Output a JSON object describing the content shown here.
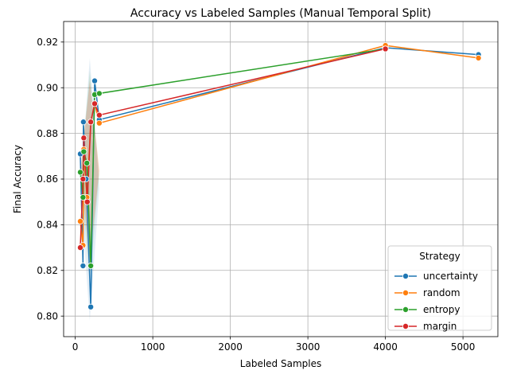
{
  "chart_data": {
    "type": "line",
    "title": "Accuracy vs Labeled Samples (Manual Temporal Split)",
    "xlabel": "Labeled Samples",
    "ylabel": "Final Accuracy",
    "xlim": [
      -150,
      5450
    ],
    "ylim": [
      0.791,
      0.929
    ],
    "xticks": [
      0,
      1000,
      2000,
      3000,
      4000,
      5000
    ],
    "xtick_labels": [
      "0",
      "1000",
      "2000",
      "3000",
      "4000",
      "5000"
    ],
    "yticks": [
      0.8,
      0.82,
      0.84,
      0.86,
      0.88,
      0.9,
      0.92
    ],
    "ytick_labels": [
      "0.80",
      "0.82",
      "0.84",
      "0.86",
      "0.88",
      "0.90",
      "0.92"
    ],
    "grid": true,
    "legend_title": "Strategy",
    "legend_position": "lower-right",
    "series": [
      {
        "name": "uncertainty",
        "color": "#1f77b4",
        "points": [
          {
            "x": 65,
            "y": 0.871
          },
          {
            "x": 100,
            "y": 0.822
          },
          {
            "x": 105,
            "y": 0.885
          },
          {
            "x": 140,
            "y": 0.86
          },
          {
            "x": 200,
            "y": 0.804
          },
          {
            "x": 250,
            "y": 0.903
          },
          {
            "x": 310,
            "y": 0.886
          },
          {
            "x": 4000,
            "y": 0.9175
          },
          {
            "x": 5200,
            "y": 0.9145
          }
        ]
      },
      {
        "name": "random",
        "color": "#ff7f0e",
        "points": [
          {
            "x": 65,
            "y": 0.8415
          },
          {
            "x": 100,
            "y": 0.831
          },
          {
            "x": 110,
            "y": 0.873
          },
          {
            "x": 150,
            "y": 0.852
          },
          {
            "x": 200,
            "y": 0.885
          },
          {
            "x": 250,
            "y": 0.893
          },
          {
            "x": 310,
            "y": 0.8845
          },
          {
            "x": 4000,
            "y": 0.9185
          },
          {
            "x": 5200,
            "y": 0.913
          }
        ]
      },
      {
        "name": "entropy",
        "color": "#2ca02c",
        "points": [
          {
            "x": 65,
            "y": 0.863
          },
          {
            "x": 100,
            "y": 0.852
          },
          {
            "x": 110,
            "y": 0.872
          },
          {
            "x": 150,
            "y": 0.867
          },
          {
            "x": 200,
            "y": 0.822
          },
          {
            "x": 250,
            "y": 0.897
          },
          {
            "x": 310,
            "y": 0.8975
          },
          {
            "x": 4000,
            "y": 0.917
          }
        ]
      },
      {
        "name": "margin",
        "color": "#d62728",
        "points": [
          {
            "x": 65,
            "y": 0.83
          },
          {
            "x": 100,
            "y": 0.86
          },
          {
            "x": 110,
            "y": 0.878
          },
          {
            "x": 155,
            "y": 0.85
          },
          {
            "x": 200,
            "y": 0.885
          },
          {
            "x": 250,
            "y": 0.893
          },
          {
            "x": 310,
            "y": 0.888
          },
          {
            "x": 4000,
            "y": 0.917
          }
        ]
      }
    ]
  }
}
